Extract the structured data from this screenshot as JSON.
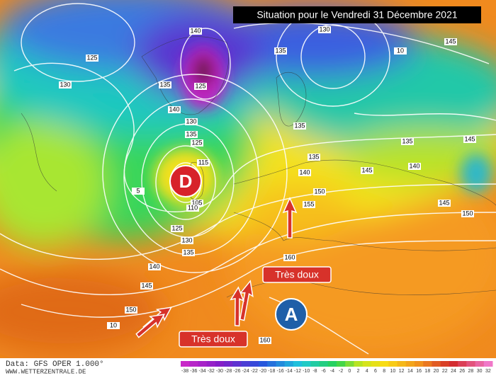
{
  "title": "Situation pour le Vendredi 31 Décembre 2021",
  "low_marker": "D",
  "high_marker": "A",
  "callouts": [
    "Très doux",
    "Très doux"
  ],
  "footer": {
    "source": "Data: GFS OPER 1.000°",
    "site": "WWW.WETTERZENTRALE.DE"
  },
  "contour_labels": [
    "125",
    "130",
    "135",
    "140",
    "135",
    "130",
    "145",
    "125",
    "140",
    "130",
    "135",
    "125",
    "115",
    "105",
    "110",
    "125",
    "130",
    "135",
    "140",
    "145",
    "150",
    "135",
    "135",
    "135",
    "140",
    "145",
    "150",
    "155",
    "160",
    "160",
    "140",
    "145",
    "150",
    "145",
    "10",
    "5",
    "10"
  ],
  "colorbar": {
    "labels": [
      -38,
      -36,
      -34,
      -32,
      -30,
      -28,
      -26,
      -24,
      -22,
      -20,
      -18,
      -16,
      -14,
      -12,
      -10,
      -8,
      -6,
      -4,
      -2,
      0,
      2,
      4,
      6,
      8,
      10,
      12,
      14,
      16,
      18,
      20,
      22,
      24,
      26,
      28,
      30,
      32
    ]
  }
}
